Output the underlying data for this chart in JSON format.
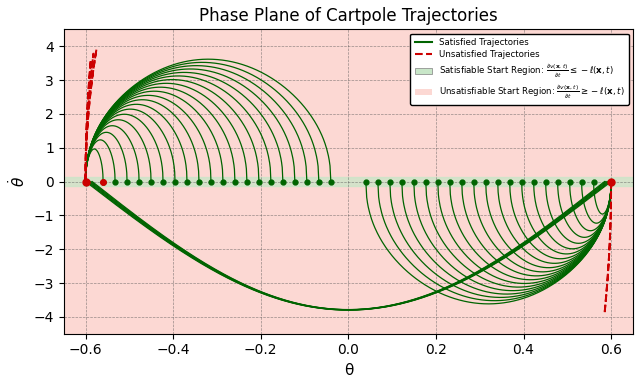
{
  "title": "Phase Plane of Cartpole Trajectories",
  "xlabel": "θ",
  "ylabel": "θ",
  "xlim": [
    -0.65,
    0.65
  ],
  "ylim": [
    -4.5,
    4.5
  ],
  "xticks": [
    -0.6,
    -0.4,
    -0.2,
    0.0,
    0.2,
    0.4,
    0.6
  ],
  "yticks": [
    -4,
    -3,
    -2,
    -1,
    0,
    1,
    2,
    3,
    4
  ],
  "background_color": "#fcd8d3",
  "satisfiable_region_color": "#c8e6c8",
  "green_color": "#006400",
  "red_color": "#cc0000",
  "legend_sat_label": "Satisfied Trajectories",
  "legend_unsat_label": "Unsatisfied Trajectories",
  "legend_sat_region": "Satisfiable Start Region: $\\frac{\\partial v(\\mathbf{x}, t)}{\\partial t} \\leq -\\ell(\\mathbf{x}, t)$",
  "legend_unsat_region": "Unsatisfiable Start Region: $\\frac{\\partial v(\\mathbf{x}, t)}{\\partial t} \\geq -\\ell(\\mathbf{x}, t)$"
}
